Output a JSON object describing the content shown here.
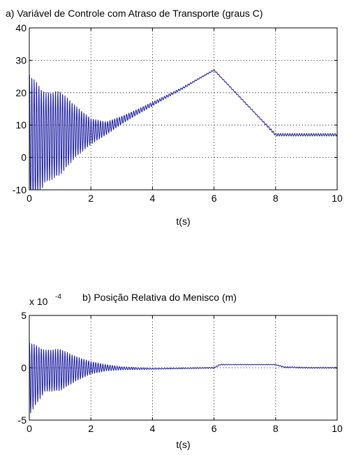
{
  "chart_data": [
    {
      "type": "line",
      "title": "a) Variável de Controle com Atraso de Transporte (graus C)",
      "xlabel": "t(s)",
      "ylabel": "",
      "xlim": [
        0,
        10
      ],
      "ylim": [
        -10,
        40
      ],
      "xticks": [
        "0",
        "2",
        "4",
        "6",
        "8",
        "10"
      ],
      "yticks": [
        "-10",
        "0",
        "10",
        "20",
        "30",
        "40"
      ],
      "grid": true,
      "series": [
        {
          "color": "#1a1aa0",
          "x": [
            0,
            0.5,
            1.0,
            1.5,
            2.0,
            2.5,
            3.0,
            3.5,
            4.0,
            4.5,
            5.0,
            5.5,
            6.0,
            6.5,
            7.0,
            7.5,
            8.0,
            8.5,
            9.0,
            9.5,
            10.0
          ],
          "y": [
            4.0,
            6.0,
            7.5,
            8.0,
            8.0,
            9.0,
            11.5,
            14.0,
            16.5,
            19.0,
            21.5,
            24.3,
            27.0,
            22.0,
            17.0,
            12.0,
            7.0,
            7.0,
            7.0,
            7.0,
            7.0
          ],
          "oscillation_amplitude": [
            22.0,
            14.0,
            13.0,
            8.0,
            4.0,
            2.0,
            1.2,
            0.8,
            0.6,
            0.4,
            0.3,
            0.2,
            0.2,
            0.2,
            0.2,
            0.2,
            0.4,
            0.4,
            0.4,
            0.4,
            0.4
          ]
        }
      ]
    },
    {
      "type": "line",
      "title": "b) Posição Relativa do Menisco (m)",
      "scale_label": "x 10",
      "scale_exponent": "-4",
      "xlabel": "t(s)",
      "ylabel": "",
      "xlim": [
        0,
        10
      ],
      "ylim": [
        -5,
        5
      ],
      "xticks": [
        "0",
        "2",
        "4",
        "6",
        "8",
        "10"
      ],
      "yticks": [
        "-5",
        "0",
        "5"
      ],
      "grid": true,
      "series": [
        {
          "color": "#1a1aa0",
          "x": [
            0,
            0.5,
            1.0,
            1.5,
            2.0,
            2.5,
            3.0,
            4.0,
            5.0,
            6.0,
            6.2,
            6.5,
            7.0,
            7.5,
            8.0,
            8.3,
            8.5,
            9.0,
            10.0
          ],
          "y": [
            -1.0,
            -0.3,
            -0.2,
            -0.1,
            0.0,
            0.0,
            -0.05,
            -0.1,
            -0.05,
            0.0,
            0.3,
            0.3,
            0.3,
            0.3,
            0.3,
            0.05,
            0.05,
            0.0,
            0.0
          ],
          "oscillation_amplitude": [
            3.5,
            2.0,
            2.0,
            1.2,
            0.6,
            0.3,
            0.15,
            0.05,
            0.05,
            0.05,
            0.05,
            0.03,
            0.03,
            0.03,
            0.03,
            0.05,
            0.05,
            0.05,
            0.05
          ]
        }
      ]
    }
  ]
}
